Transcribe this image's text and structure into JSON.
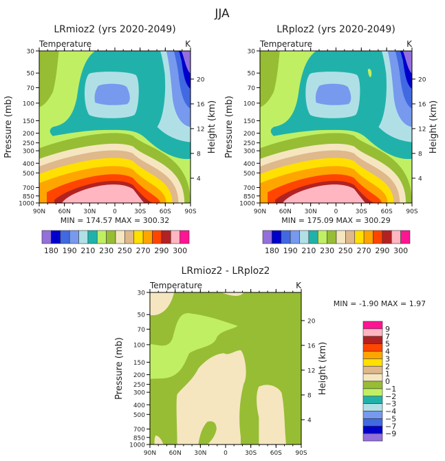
{
  "figure_title": "JJA",
  "palette": [
    "#9370db",
    "#0000cd",
    "#4169e1",
    "#7799ee",
    "#b0e0e6",
    "#20b2aa",
    "#c1ef64",
    "#97bd34",
    "#f5e6c0",
    "#dfb88b",
    "#ffe000",
    "#ffa500",
    "#ff4500",
    "#b22222",
    "#ffb6c1",
    "#ff1493"
  ],
  "chart_data": [
    {
      "type": "heatmap",
      "title": "LRmioz2 (yrs 2020-2049)",
      "left_label": "Temperature",
      "right_label": "K",
      "xlabel": "",
      "ylabel": "Pressure (mb)",
      "ylabel_right": "Height (km)",
      "x_ticks": [
        "90N",
        "60N",
        "30N",
        "0",
        "30S",
        "60S",
        "90S"
      ],
      "y_ticks": [
        "30",
        "50",
        "70",
        "100",
        "150",
        "200",
        "250",
        "300",
        "400",
        "500",
        "700",
        "850",
        "1000"
      ],
      "y_right_ticks": [
        "20",
        "16",
        "12",
        "8",
        "4"
      ],
      "stats": "MIN = 174.57   MAX = 300.32",
      "min": 174.57,
      "max": 300.32,
      "colorbar": {
        "orientation": "horizontal",
        "labels": [
          "180",
          "190",
          "210",
          "230",
          "250",
          "270",
          "290",
          "300"
        ]
      }
    },
    {
      "type": "heatmap",
      "title": "LRploz2 (yrs 2020-2049)",
      "left_label": "Temperature",
      "right_label": "K",
      "xlabel": "",
      "ylabel": "Pressure (mb)",
      "ylabel_right": "Height (km)",
      "x_ticks": [
        "90N",
        "60N",
        "30N",
        "0",
        "30S",
        "60S",
        "90S"
      ],
      "y_ticks": [
        "30",
        "50",
        "70",
        "100",
        "150",
        "200",
        "250",
        "300",
        "400",
        "500",
        "700",
        "850",
        "1000"
      ],
      "y_right_ticks": [
        "20",
        "16",
        "12",
        "8",
        "4"
      ],
      "stats": "MIN = 175.09   MAX = 300.29",
      "min": 175.09,
      "max": 300.29,
      "colorbar": {
        "orientation": "horizontal",
        "labels": [
          "180",
          "190",
          "210",
          "230",
          "250",
          "270",
          "290",
          "300"
        ]
      }
    },
    {
      "type": "heatmap",
      "title": "LRmioz2 - LRploz2",
      "left_label": "Temperature",
      "right_label": "K",
      "xlabel": "",
      "ylabel": "Pressure (mb)",
      "ylabel_right": "Height (km)",
      "x_ticks": [
        "90N",
        "60N",
        "30N",
        "0",
        "30S",
        "60S",
        "90S"
      ],
      "y_ticks": [
        "30",
        "50",
        "70",
        "100",
        "150",
        "200",
        "250",
        "300",
        "400",
        "500",
        "700",
        "850",
        "1000"
      ],
      "y_right_ticks": [
        "20",
        "16",
        "12",
        "8",
        "4"
      ],
      "stats": "MIN =   -1.90   MAX =     1.97",
      "min": -1.9,
      "max": 1.97,
      "colorbar": {
        "orientation": "vertical",
        "labels": [
          "9",
          "7",
          "5",
          "4",
          "3",
          "2",
          "1",
          "0",
          "-1",
          "-2",
          "-3",
          "-4",
          "-5",
          "-7",
          "-9"
        ]
      }
    }
  ]
}
